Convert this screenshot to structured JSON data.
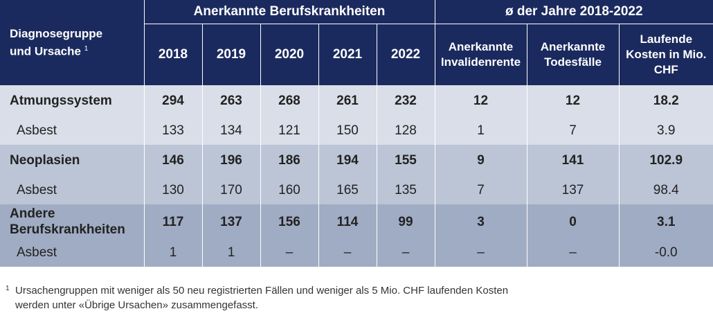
{
  "header": {
    "diagnosis_label_line1": "Diagnosegruppe",
    "diagnosis_label_line2": "und Ursache",
    "diagnosis_sup": "1",
    "group_recognized": "Anerkannte Berufskrankheiten",
    "group_average": "ø der Jahre 2018-2022",
    "years": [
      "2018",
      "2019",
      "2020",
      "2021",
      "2022"
    ],
    "avg_col1_line1": "Anerkannte",
    "avg_col1_line2": "Invalidenrente",
    "avg_col2_line1": "Anerkannte",
    "avg_col2_line2": "Todesfälle",
    "avg_col3_line1": "Laufende",
    "avg_col3_line2": "Kosten in Mio.",
    "avg_col3_line3": "CHF"
  },
  "rows": [
    {
      "label": "Atmungssystem",
      "values": [
        "294",
        "263",
        "268",
        "261",
        "232",
        "12",
        "12",
        "18.2"
      ]
    },
    {
      "label": "Asbest",
      "values": [
        "133",
        "134",
        "121",
        "150",
        "128",
        "1",
        "7",
        "3.9"
      ]
    },
    {
      "label": "Neoplasien",
      "values": [
        "146",
        "196",
        "186",
        "194",
        "155",
        "9",
        "141",
        "102.9"
      ]
    },
    {
      "label": "Asbest",
      "values": [
        "130",
        "170",
        "160",
        "165",
        "135",
        "7",
        "137",
        "98.4"
      ]
    },
    {
      "label_line1": "Andere",
      "label_line2": "Berufskrankheiten",
      "values": [
        "117",
        "137",
        "156",
        "114",
        "99",
        "3",
        "0",
        "3.1"
      ]
    },
    {
      "label": "Asbest",
      "values": [
        "1",
        "1",
        "–",
        "–",
        "–",
        "–",
        "–",
        "-0.0"
      ]
    }
  ],
  "footnote": {
    "mark": "1",
    "line1": "Ursachengruppen mit weniger als 50 neu registrierten Fällen und weniger als 5 Mio. CHF laufenden Kosten",
    "line2": "werden unter «Übrige Ursachen» zusammengefasst."
  }
}
